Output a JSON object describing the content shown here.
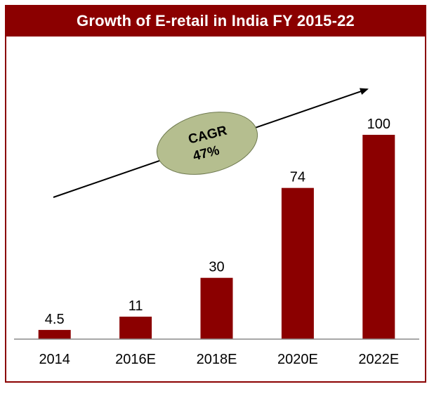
{
  "chart_data": {
    "type": "bar",
    "title": "Growth of E-retail in India FY 2015-22",
    "categories": [
      "2014",
      "2016E",
      "2018E",
      "2020E",
      "2022E"
    ],
    "values": [
      4.5,
      11,
      30,
      74,
      100
    ],
    "value_labels": [
      "4.5",
      "11",
      "30",
      "74",
      "100"
    ],
    "ylim": [
      0,
      100
    ],
    "grid": false,
    "legend": "none",
    "annotation": {
      "line1": "CAGR",
      "line2": "47%"
    },
    "colors": {
      "bar": "#8b0000",
      "banner": "#8b0000",
      "ellipse": "#b5be8f",
      "arrow": "#000000"
    }
  }
}
